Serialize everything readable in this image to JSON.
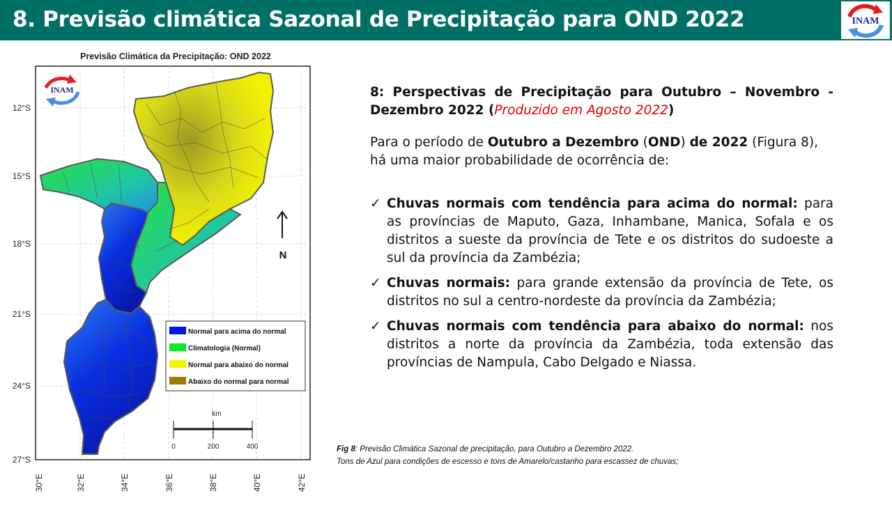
{
  "slide": {
    "title": "8. Previsão climática Sazonal de Precipitação para OND 2022",
    "logo_text": "INAM"
  },
  "map": {
    "title": "Previsão Climática da Precipitação: OND 2022",
    "logo_text": "INAM",
    "lat_labels": [
      "12°S",
      "15°S",
      "18°S",
      "21°S",
      "24°S",
      "27°S"
    ],
    "lon_labels": [
      "30°E",
      "32°E",
      "34°E",
      "36°E",
      "38°E",
      "40°E",
      "42°E"
    ],
    "north_label": "N",
    "legend": [
      {
        "label": "Normal para acima do normal",
        "color": "#0a14e6"
      },
      {
        "label": "Climatologia (Normal)",
        "color": "#00ee22"
      },
      {
        "label": "Normal para abaixo do normal",
        "color": "#f5f500"
      },
      {
        "label": "Abaixo do normal para normal",
        "color": "#a07a00"
      }
    ],
    "scale": {
      "unit": "km",
      "ticks": [
        "0",
        "200",
        "400"
      ]
    }
  },
  "text": {
    "heading_bold": "8: Perspectivas de Precipitação para Outubro – Novembro - Dezembro 2022 (",
    "heading_red": "Produzido em Agosto 2022",
    "heading_close": ")",
    "intro_1": "Para o período de ",
    "intro_bold_1": "Outubro a Dezembro",
    "intro_2": " (",
    "intro_bold_2": "OND",
    "intro_3": ") ",
    "intro_bold_3": "de 2022",
    "intro_4": " (Figura 8), há uma maior probabilidade de ocorrência de:",
    "check_mark": "✓",
    "bullets": [
      {
        "bold": "Chuvas normais com tendência para acima do normal:",
        "text": " para as províncias de Maputo, Gaza, Inhambane, Manica, Sofala e os distritos a sueste da província de Tete e os distritos do sudoeste a sul da província da Zambézia;"
      },
      {
        "bold": "Chuvas normais:",
        "text": " para grande extensão da província de Tete, os distritos no sul a centro-nordeste da província da Zambézia;"
      },
      {
        "bold": "Chuvas normais com tendência para abaixo do normal:",
        "text": " nos distritos a norte da província da Zambézia, toda extensão das províncias de Nampula, Cabo Delgado e Niassa."
      }
    ]
  },
  "caption": {
    "label": "Fig 8",
    "line1": ": Previsão Climática Sazonal de precipitação, para Outubro  a Dezembro 2022.",
    "line2": "Tons de Azul para condições de escesso e tons de Amarelo/castanho para escassez de chuvas;"
  }
}
